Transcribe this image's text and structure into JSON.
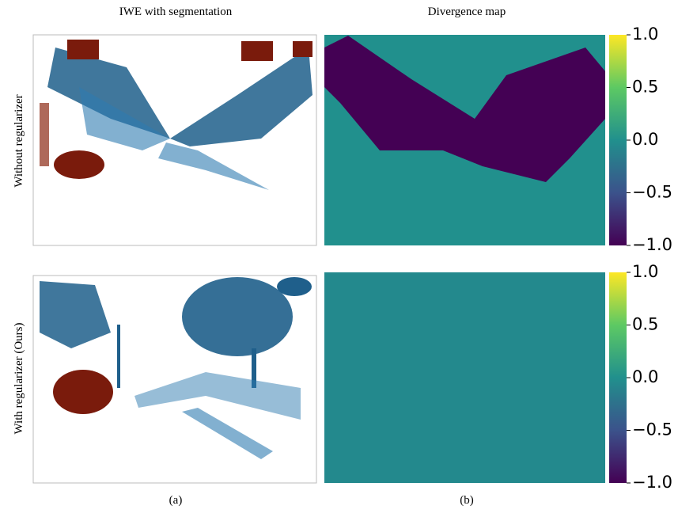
{
  "columns": [
    "IWE with segmentation",
    "Divergence map"
  ],
  "rows": [
    "Without regularizer",
    "With regularizer  (Ours)"
  ],
  "colorbar": {
    "lim": [
      -1,
      1
    ],
    "ticks": [
      {
        "value": 1.0,
        "label": "1.0"
      },
      {
        "value": 0.5,
        "label": "0.5"
      },
      {
        "value": 0.0,
        "label": "0.0"
      },
      {
        "value": -0.5,
        "label": "−0.5"
      },
      {
        "value": -1.0,
        "label": "−1.0"
      }
    ]
  },
  "captions": [
    "(a)",
    "(b)"
  ]
}
